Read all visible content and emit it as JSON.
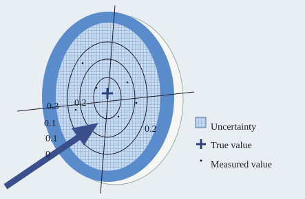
{
  "labels": [
    "0.3",
    "0.2",
    "0.1",
    "0.1",
    "0.2",
    "0"
  ],
  "legend": [
    {
      "label": "Uncertainty"
    },
    {
      "label": "True value"
    },
    {
      "label": "Measured value"
    }
  ]
}
